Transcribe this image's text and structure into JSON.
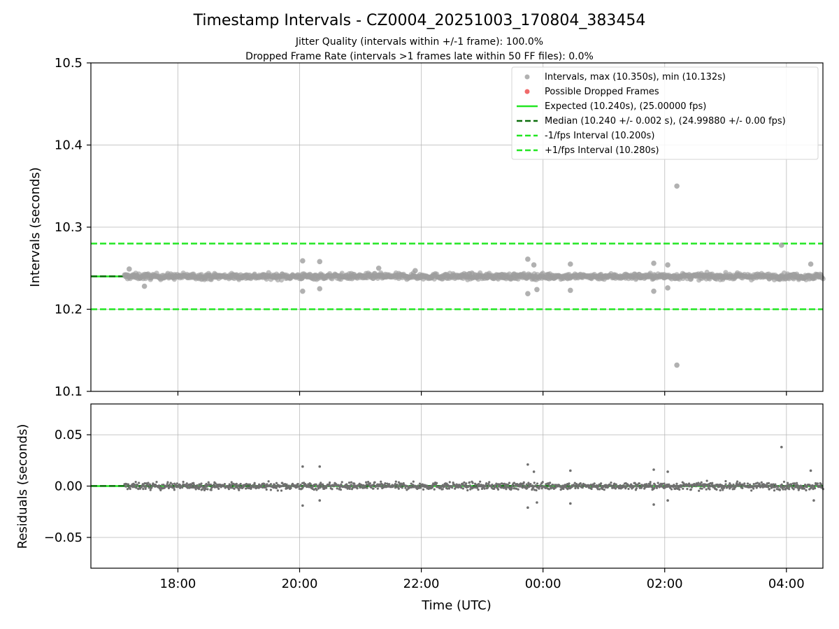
{
  "chart_data": [
    {
      "panel": "intervals",
      "type": "scatter",
      "title": "Timestamp Intervals - CZ0004_20251003_170804_383454",
      "subtitle_lines": [
        "Jitter Quality (intervals within +/-1 frame): 100.0%",
        "Dropped Frame Rate (intervals >1 frames late within 50 FF files): 0.0%"
      ],
      "xlabel": "",
      "ylabel": "Intervals (seconds)",
      "x_unit": "hours since 00:00 UTC",
      "xlim": [
        -7.43,
        4.6
      ],
      "ylim": [
        10.1,
        10.5
      ],
      "yticks": [
        10.1,
        10.2,
        10.3,
        10.4,
        10.5
      ],
      "ytick_labels": [
        "10.1",
        "10.2",
        "10.3",
        "10.4",
        "10.5"
      ],
      "grid": true,
      "legend_position": "top-right",
      "series": [
        {
          "name": "Intervals, max (10.350s), min (10.132s)",
          "kind": "points",
          "color": "#9e9e9e",
          "outliers": [
            {
              "x": -6.8,
              "y": 10.249
            },
            {
              "x": -6.55,
              "y": 10.228
            },
            {
              "x": -3.95,
              "y": 10.259
            },
            {
              "x": -3.95,
              "y": 10.222
            },
            {
              "x": -3.67,
              "y": 10.258
            },
            {
              "x": -3.67,
              "y": 10.225
            },
            {
              "x": -2.7,
              "y": 10.25
            },
            {
              "x": -2.1,
              "y": 10.247
            },
            {
              "x": -0.25,
              "y": 10.261
            },
            {
              "x": -0.25,
              "y": 10.219
            },
            {
              "x": -0.15,
              "y": 10.254
            },
            {
              "x": -0.1,
              "y": 10.224
            },
            {
              "x": 0.45,
              "y": 10.255
            },
            {
              "x": 0.45,
              "y": 10.223
            },
            {
              "x": 1.82,
              "y": 10.256
            },
            {
              "x": 1.82,
              "y": 10.222
            },
            {
              "x": 2.05,
              "y": 10.254
            },
            {
              "x": 2.05,
              "y": 10.226
            },
            {
              "x": 2.2,
              "y": 10.35
            },
            {
              "x": 2.2,
              "y": 10.132
            },
            {
              "x": 3.92,
              "y": 10.278
            },
            {
              "x": 4.4,
              "y": 10.255
            }
          ]
        },
        {
          "name": "Possible Dropped Frames",
          "kind": "points",
          "color": "#f06a6a",
          "points": []
        },
        {
          "name": "Expected (10.240s), (25.00000 fps)",
          "kind": "hline",
          "y": 10.24,
          "color": "#22e622",
          "style": "solid"
        },
        {
          "name": "Median (10.240 +/- 0.002 s), (24.99880 +/- 0.00 fps)",
          "kind": "hline",
          "y": 10.2401,
          "color": "#0b6e0b",
          "style": "dashed"
        },
        {
          "name": "-1/fps Interval (10.200s)",
          "kind": "hline",
          "y": 10.2,
          "color": "#22e622",
          "style": "dashed"
        },
        {
          "name": "+1/fps Interval (10.280s)",
          "kind": "hline",
          "y": 10.28,
          "color": "#22e622",
          "style": "dashed"
        }
      ]
    },
    {
      "panel": "residuals",
      "type": "scatter",
      "xlabel": "Time (UTC)",
      "ylabel": "Residuals (seconds)",
      "xlim": [
        -7.43,
        4.6
      ],
      "ylim": [
        -0.08,
        0.08
      ],
      "yticks": [
        -0.05,
        0.0,
        0.05
      ],
      "ytick_labels": [
        "−0.05",
        "0.00",
        "0.05"
      ],
      "xticks": [
        -6,
        -4,
        -2,
        0,
        2,
        4
      ],
      "xtick_labels": [
        "18:00",
        "20:00",
        "22:00",
        "00:00",
        "02:00",
        "04:00"
      ],
      "grid": true,
      "series": [
        {
          "name": "Residuals",
          "kind": "points",
          "color": "#6f6f6f",
          "outliers": [
            {
              "x": -3.95,
              "y": 0.019
            },
            {
              "x": -3.95,
              "y": -0.019
            },
            {
              "x": -3.67,
              "y": 0.019
            },
            {
              "x": -3.67,
              "y": -0.014
            },
            {
              "x": -0.25,
              "y": 0.021
            },
            {
              "x": -0.25,
              "y": -0.021
            },
            {
              "x": -0.15,
              "y": 0.014
            },
            {
              "x": -0.1,
              "y": -0.016
            },
            {
              "x": 0.45,
              "y": 0.015
            },
            {
              "x": 0.45,
              "y": -0.017
            },
            {
              "x": 1.82,
              "y": 0.016
            },
            {
              "x": 1.82,
              "y": -0.018
            },
            {
              "x": 2.05,
              "y": 0.014
            },
            {
              "x": 2.05,
              "y": -0.014
            },
            {
              "x": 3.92,
              "y": 0.038
            },
            {
              "x": 4.4,
              "y": 0.015
            },
            {
              "x": 4.45,
              "y": -0.014
            }
          ]
        },
        {
          "name": "Expected",
          "kind": "hline",
          "y": 0.0,
          "color": "#22e622",
          "style": "solid"
        },
        {
          "name": "Median",
          "kind": "hline",
          "y": 0.0001,
          "color": "#0b6e0b",
          "style": "dashed"
        }
      ]
    }
  ],
  "data_extent": {
    "x_start": -6.88,
    "x_end": 4.6,
    "dense_band_halfwidth": 0.005
  }
}
